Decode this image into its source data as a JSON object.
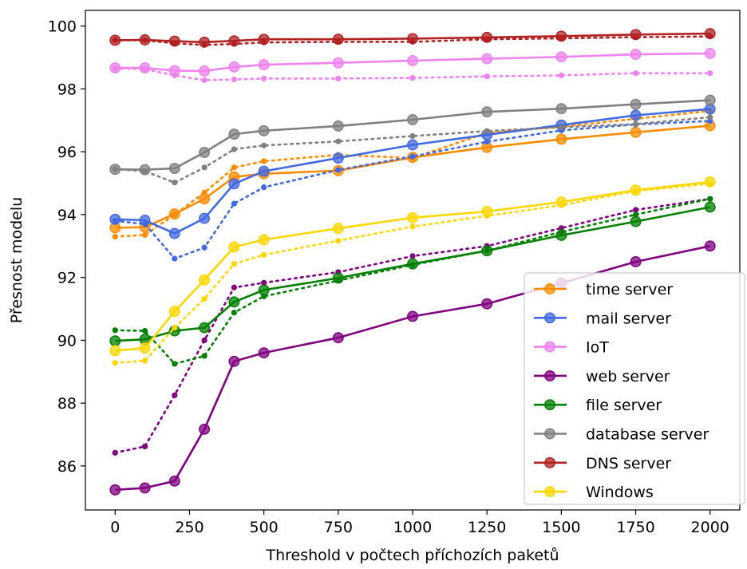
{
  "chart_data": {
    "type": "line",
    "xlabel": "Threshold v počtech příchozích paketů",
    "ylabel": "Přesnost modelu",
    "xlim": [
      -100,
      2100
    ],
    "ylim": [
      84.6,
      100.5
    ],
    "x_ticks": [
      0,
      250,
      500,
      750,
      1000,
      1250,
      1500,
      1750,
      2000
    ],
    "y_ticks": [
      86,
      88,
      90,
      92,
      94,
      96,
      98,
      100
    ],
    "x_tick_labels": [
      "0",
      "250",
      "500",
      "750",
      "1000",
      "1250",
      "1500",
      "1750",
      "2000"
    ],
    "y_tick_labels": [
      "86",
      "88",
      "90",
      "92",
      "94",
      "96",
      "98",
      "100"
    ],
    "x": [
      0,
      100,
      200,
      300,
      400,
      500,
      750,
      1000,
      1250,
      1500,
      1750,
      2000
    ],
    "grid": false,
    "legend_position": "lower right",
    "line_styles": {
      "solid": "large markers",
      "dotted": "small markers"
    },
    "series": [
      {
        "name": "time server",
        "color": "#ff8c00",
        "solid": [
          93.58,
          93.6,
          94.02,
          94.5,
          95.2,
          95.3,
          95.4,
          95.82,
          96.14,
          96.4,
          96.62,
          96.83
        ],
        "dotted": [
          93.3,
          93.35,
          94.0,
          94.7,
          95.5,
          95.7,
          95.9,
          95.8,
          96.6,
          96.8,
          97.05,
          97.3
        ]
      },
      {
        "name": "mail server",
        "color": "#4169e1",
        "solid": [
          93.85,
          93.82,
          93.4,
          93.88,
          94.98,
          95.38,
          95.8,
          96.22,
          96.54,
          96.85,
          97.16,
          97.36
        ],
        "dotted": [
          93.8,
          93.7,
          92.6,
          92.95,
          94.35,
          94.87,
          95.42,
          95.85,
          96.32,
          96.68,
          96.87,
          96.98
        ]
      },
      {
        "name": "IoT",
        "color": "#ee82ee",
        "solid": [
          98.67,
          98.67,
          98.58,
          98.57,
          98.7,
          98.77,
          98.83,
          98.9,
          98.96,
          99.02,
          99.1,
          99.13
        ],
        "dotted": [
          98.65,
          98.63,
          98.43,
          98.28,
          98.3,
          98.33,
          98.33,
          98.35,
          98.4,
          98.43,
          98.5,
          98.5
        ]
      },
      {
        "name": "web server",
        "color": "#800080",
        "solid": [
          85.24,
          85.3,
          85.52,
          87.17,
          89.33,
          89.6,
          90.08,
          90.76,
          91.16,
          91.82,
          92.5,
          93.0
        ],
        "dotted": [
          86.42,
          86.62,
          88.25,
          90.0,
          91.68,
          91.83,
          92.17,
          92.68,
          93.0,
          93.57,
          94.15,
          94.5
        ]
      },
      {
        "name": "file server",
        "color": "#008000",
        "solid": [
          89.98,
          90.03,
          90.3,
          90.4,
          91.22,
          91.6,
          91.98,
          92.43,
          92.85,
          93.34,
          93.78,
          94.24
        ],
        "dotted": [
          90.32,
          90.3,
          89.25,
          89.5,
          90.88,
          91.4,
          91.9,
          92.4,
          92.85,
          93.45,
          94.0,
          94.5
        ]
      },
      {
        "name": "database server",
        "color": "#808080",
        "solid": [
          95.44,
          95.43,
          95.47,
          95.98,
          96.56,
          96.67,
          96.82,
          97.02,
          97.27,
          97.37,
          97.51,
          97.64
        ],
        "dotted": [
          95.45,
          95.38,
          95.02,
          95.5,
          96.08,
          96.2,
          96.33,
          96.5,
          96.66,
          96.78,
          96.88,
          97.1
        ]
      },
      {
        "name": "DNS server",
        "color": "#b22222",
        "solid": [
          99.55,
          99.56,
          99.52,
          99.49,
          99.53,
          99.58,
          99.58,
          99.6,
          99.64,
          99.68,
          99.73,
          99.76
        ],
        "dotted": [
          99.55,
          99.55,
          99.45,
          99.4,
          99.43,
          99.48,
          99.5,
          99.5,
          99.58,
          99.61,
          99.65,
          99.67
        ]
      },
      {
        "name": "Windows",
        "color": "#ffd700",
        "solid": [
          89.67,
          89.75,
          90.92,
          91.92,
          92.97,
          93.2,
          93.56,
          93.9,
          94.1,
          94.4,
          94.78,
          95.04
        ],
        "dotted": [
          89.28,
          89.35,
          90.4,
          91.32,
          92.43,
          92.72,
          93.17,
          93.62,
          93.96,
          94.3,
          94.75,
          94.98
        ]
      }
    ]
  }
}
